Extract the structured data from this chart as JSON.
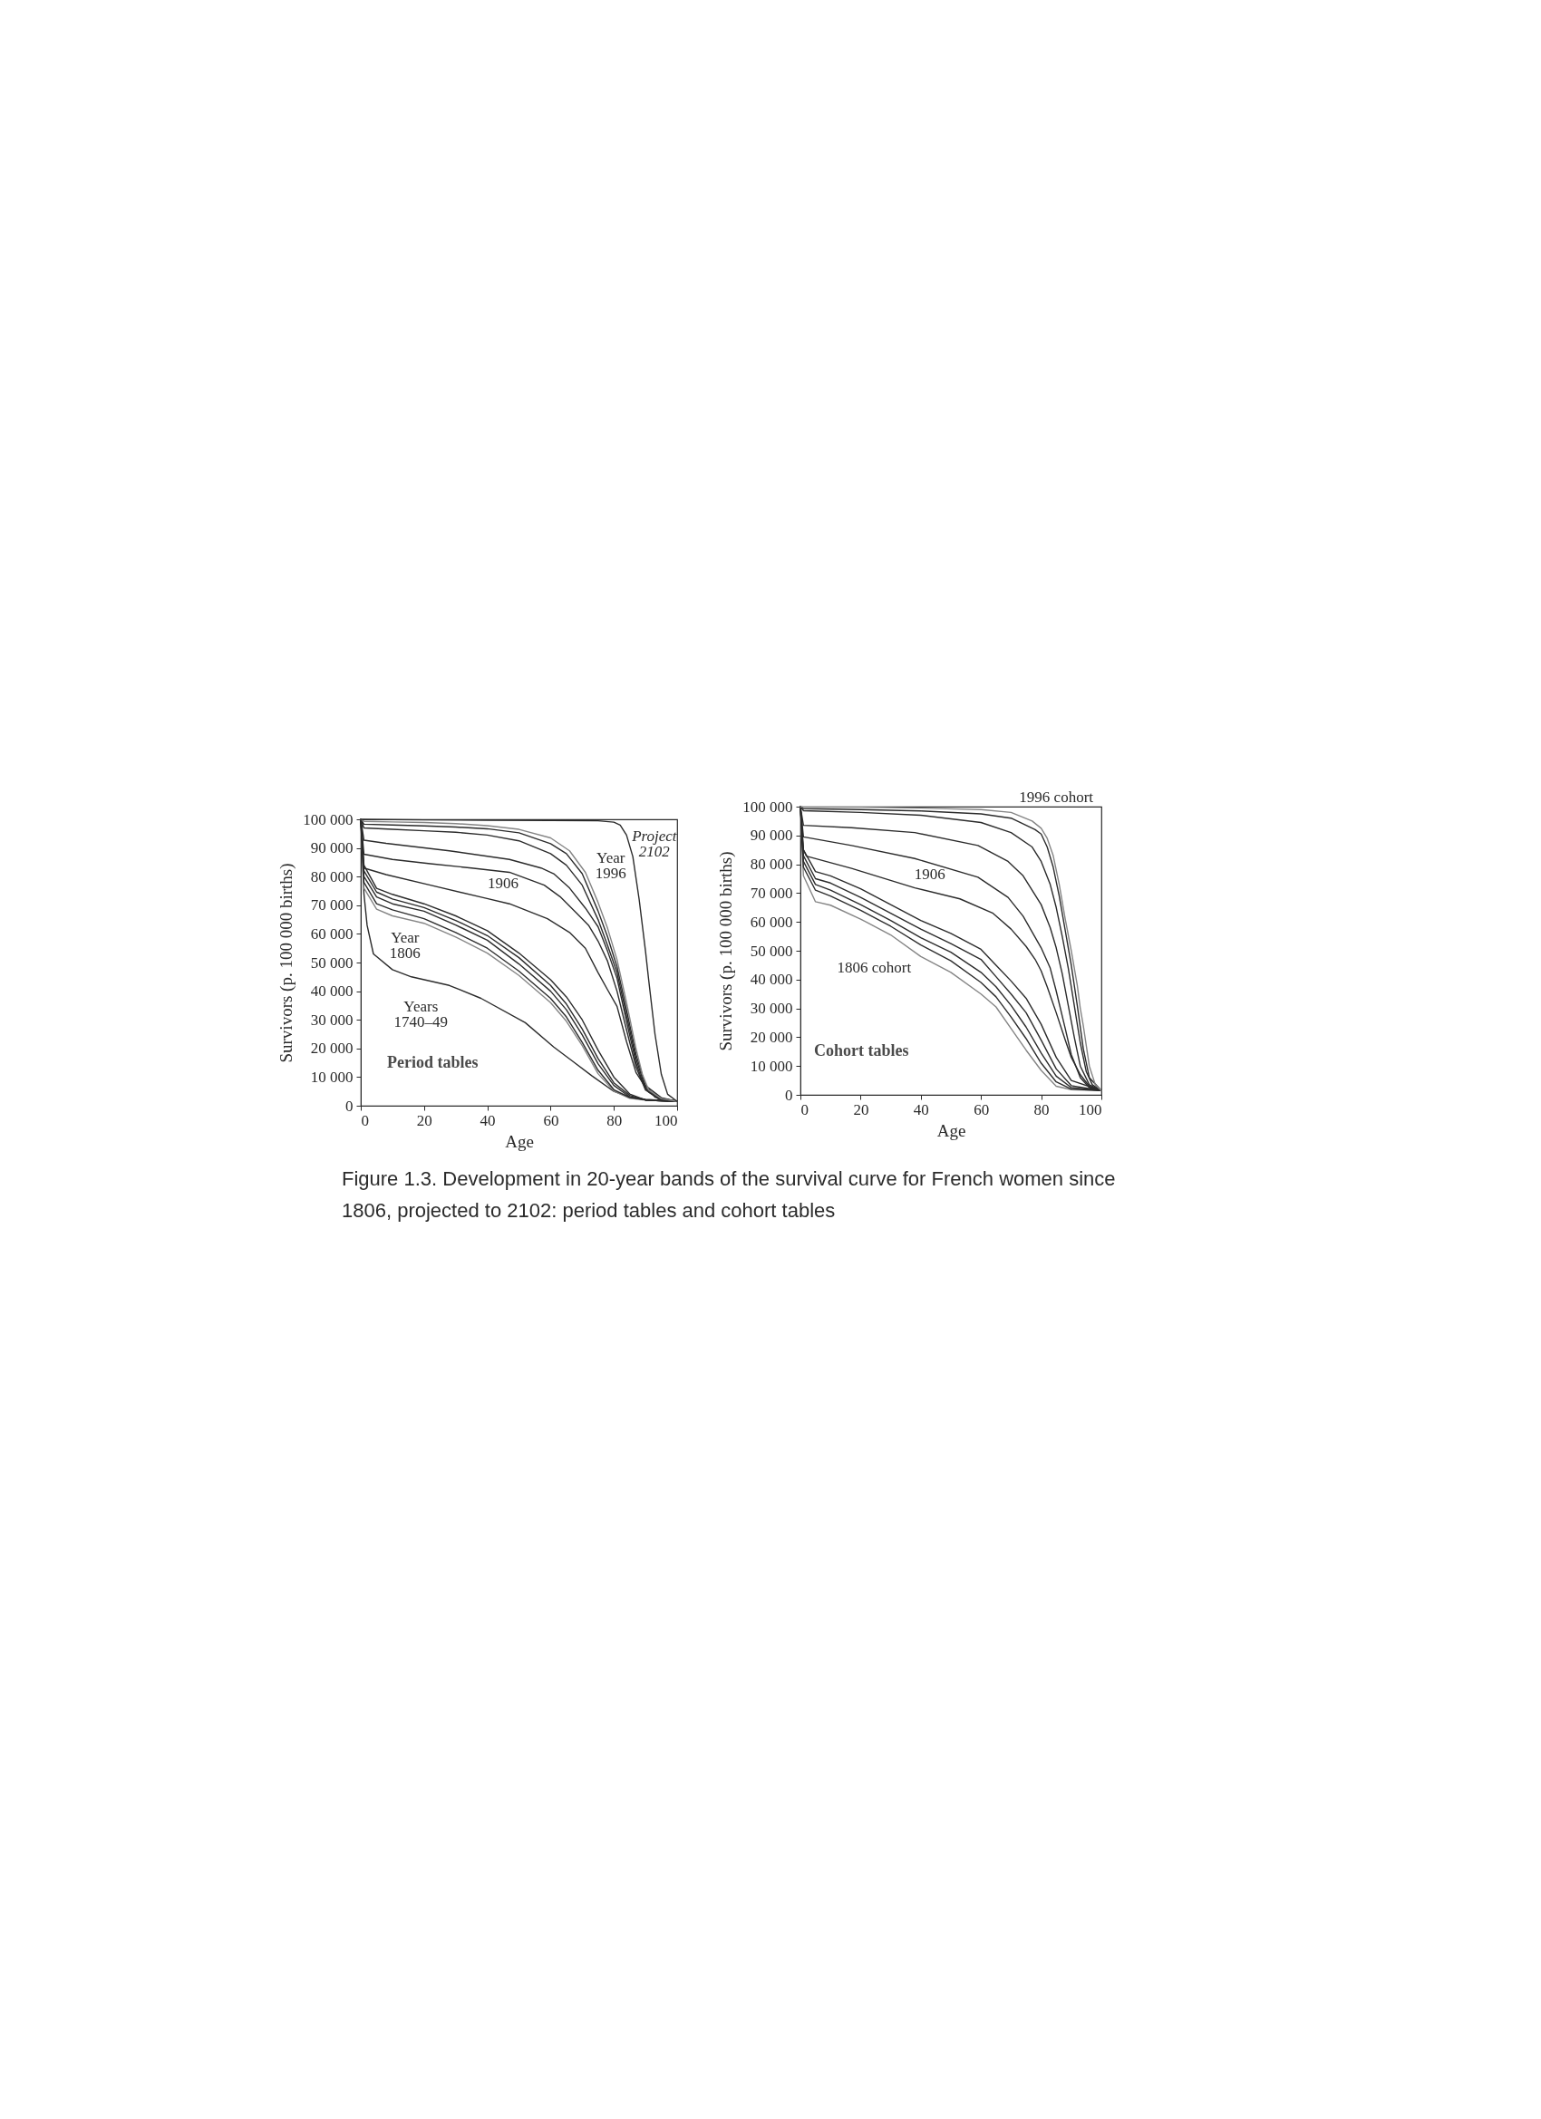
{
  "chart_data": [
    {
      "type": "line",
      "title": "Period tables",
      "xlabel": "Age",
      "ylabel": "Survivors (p. 100 000 births)",
      "xlim": [
        0,
        100
      ],
      "xticks": [
        0,
        20,
        40,
        60,
        80,
        100
      ],
      "ylim": [
        0,
        100000
      ],
      "yticks": [
        0,
        {
          "value": 10000,
          "label": "10 000"
        },
        {
          "value": 20000,
          "label": "20 000"
        },
        {
          "value": 30000,
          "label": "30 000"
        },
        {
          "value": 40000,
          "label": "40 000"
        },
        {
          "value": 50000,
          "label": "50 000"
        },
        {
          "value": 60000,
          "label": "60 000"
        },
        {
          "value": 70000,
          "label": "70 000"
        },
        {
          "value": 80000,
          "label": "80 000"
        },
        {
          "value": 90000,
          "label": "90 000"
        },
        {
          "value": 100000,
          "label": "100 000"
        }
      ],
      "series": [
        {
          "name": "Years 1740–49",
          "color": "#2b2b2b",
          "x": [
            0,
            1,
            2,
            4,
            10,
            16,
            28,
            38,
            52,
            61,
            67,
            73,
            80,
            85,
            90,
            100
          ],
          "values": [
            100000,
            74000,
            63000,
            53000,
            47500,
            45000,
            42000,
            37500,
            29000,
            20500,
            15500,
            10500,
            5000,
            3000,
            2200,
            1500
          ]
        },
        {
          "name": "Year 1806",
          "color": "#858585",
          "x": [
            0,
            1,
            5,
            10,
            20,
            30,
            40,
            50,
            60,
            65,
            70,
            75,
            80,
            85,
            90,
            100
          ],
          "values": [
            100000,
            76000,
            68600,
            66300,
            63700,
            58900,
            53300,
            45500,
            36000,
            29500,
            21000,
            11200,
            5100,
            2600,
            2000,
            1500
          ]
        },
        {
          "color": "#2b2b2b",
          "x": [
            0,
            1,
            5,
            10,
            20,
            30,
            40,
            50,
            60,
            65,
            70,
            75,
            80,
            85,
            90,
            100
          ],
          "values": [
            100000,
            78000,
            70500,
            68400,
            65300,
            60500,
            55000,
            47000,
            37500,
            31000,
            22100,
            12400,
            5600,
            2900,
            2000,
            1500
          ]
        },
        {
          "color": "#2b2b2b",
          "x": [
            0,
            1,
            5,
            10,
            20,
            30,
            40,
            50,
            60,
            65,
            70,
            75,
            80,
            85,
            90,
            100
          ],
          "values": [
            100000,
            80000,
            72900,
            70500,
            67900,
            63100,
            57800,
            49500,
            40000,
            33500,
            24700,
            14700,
            7100,
            3100,
            2000,
            1500
          ]
        },
        {
          "color": "#2b2b2b",
          "x": [
            0,
            1,
            5,
            10,
            20,
            30,
            40,
            50,
            60,
            65,
            70,
            75,
            80,
            85,
            90,
            100
          ],
          "values": [
            100000,
            82000,
            74600,
            72200,
            69200,
            64700,
            59400,
            51700,
            42000,
            35500,
            26800,
            16500,
            8000,
            3600,
            2000,
            1500
          ]
        },
        {
          "color": "#2b2b2b",
          "x": [
            0,
            1,
            5,
            10,
            20,
            30,
            40,
            50,
            60,
            65,
            70,
            75,
            80,
            85,
            90,
            100
          ],
          "values": [
            100000,
            84000,
            75900,
            73800,
            70500,
            66300,
            61100,
            53300,
            44000,
            38000,
            30000,
            19400,
            10000,
            4100,
            2000,
            1500
          ]
        },
        {
          "name": "1906",
          "color": "#2b2b2b",
          "x": [
            0,
            1,
            8,
            22,
            39,
            47,
            59,
            66,
            71,
            75,
            78,
            81,
            84,
            87,
            91,
            94,
            100
          ],
          "values": [
            100000,
            83000,
            80700,
            77000,
            72600,
            70500,
            65300,
            60500,
            55000,
            46500,
            40500,
            34700,
            22400,
            11600,
            4800,
            2500,
            1500
          ]
        },
        {
          "color": "#2b2b2b",
          "x": [
            0,
            1,
            10,
            22,
            35,
            47,
            58,
            63,
            68,
            72,
            75,
            78,
            81,
            84,
            87,
            90,
            95,
            100
          ],
          "values": [
            100000,
            87800,
            86000,
            84500,
            83000,
            81500,
            77000,
            73000,
            67500,
            63000,
            57500,
            50500,
            40000,
            26500,
            13500,
            5500,
            2000,
            1500
          ]
        },
        {
          "color": "#2b2b2b",
          "x": [
            0,
            1,
            8,
            28,
            47,
            57,
            61,
            66,
            71,
            75,
            78,
            81,
            84,
            87,
            89,
            93,
            100
          ],
          "values": [
            100000,
            92700,
            91600,
            89000,
            86000,
            83000,
            81000,
            76000,
            69000,
            62500,
            54000,
            44500,
            29500,
            15000,
            8500,
            3000,
            1500
          ]
        },
        {
          "color": "#2b2b2b",
          "x": [
            0,
            1,
            10,
            20,
            30,
            40,
            50,
            60,
            65,
            70,
            75,
            78,
            81,
            84,
            87,
            90,
            95,
            100
          ],
          "values": [
            100000,
            97000,
            96500,
            96000,
            95500,
            94500,
            92500,
            88000,
            84000,
            77000,
            65000,
            56000,
            46500,
            31500,
            16500,
            6000,
            2500,
            1500
          ]
        },
        {
          "color": "#2b2b2b",
          "x": [
            0,
            1,
            10,
            20,
            30,
            40,
            50,
            60,
            65,
            70,
            75,
            78,
            81,
            84,
            87,
            90,
            95,
            100
          ],
          "values": [
            100000,
            98300,
            98000,
            97700,
            97300,
            96700,
            95300,
            91500,
            88000,
            81000,
            68000,
            59000,
            48500,
            33500,
            18000,
            7000,
            2800,
            1500
          ]
        },
        {
          "name": "Year 1996",
          "color": "#858585",
          "x": [
            0,
            1,
            10,
            20,
            30,
            40,
            50,
            60,
            66,
            71,
            75,
            78,
            81,
            84,
            87,
            89,
            91,
            95,
            100
          ],
          "values": [
            100000,
            99300,
            99100,
            98900,
            98500,
            97800,
            96500,
            93500,
            89000,
            81500,
            71000,
            62000,
            51000,
            36000,
            20000,
            11000,
            5500,
            2500,
            1500
          ]
        },
        {
          "name": "Project 2102",
          "color": "#2b2b2b",
          "x": [
            0,
            20,
            40,
            60,
            75,
            80,
            82,
            84,
            86,
            88,
            90,
            91,
            93,
            95,
            97,
            100
          ],
          "values": [
            100000,
            99800,
            99700,
            99600,
            99500,
            99000,
            98000,
            94500,
            87000,
            72000,
            54000,
            44000,
            25000,
            11000,
            4000,
            1500
          ]
        }
      ],
      "annotations": [
        "Figure 1.3. Development in 20-year bands of the survival curve for French women since 1806, projected to 2102: period tables and cohort tables"
      ]
    },
    {
      "type": "line",
      "title": "Cohort tables",
      "xlabel": "Age",
      "ylabel": "Survivors (p. 100 000 births)",
      "xlim": [
        0,
        100
      ],
      "xticks": [
        0,
        20,
        40,
        60,
        80,
        100
      ],
      "ylim": [
        0,
        100000
      ],
      "yticks": [
        0,
        {
          "value": 10000,
          "label": "10 000"
        },
        {
          "value": 20000,
          "label": "20 000"
        },
        {
          "value": 30000,
          "label": "30 000"
        },
        {
          "value": 40000,
          "label": "40 000"
        },
        {
          "value": 50000,
          "label": "50 000"
        },
        {
          "value": 60000,
          "label": "60 000"
        },
        {
          "value": 70000,
          "label": "70 000"
        },
        {
          "value": 80000,
          "label": "80 000"
        },
        {
          "value": 90000,
          "label": "90 000"
        },
        {
          "value": 100000,
          "label": "100 000"
        }
      ],
      "series": [
        {
          "name": "1806 cohort",
          "color": "#858585",
          "x": [
            0,
            1,
            5,
            10,
            20,
            30,
            40,
            50,
            60,
            65,
            70,
            75,
            80,
            85,
            90,
            100
          ],
          "values": [
            100000,
            76000,
            67000,
            65800,
            61000,
            55500,
            48000,
            42500,
            35000,
            30500,
            23000,
            15500,
            8500,
            3000,
            1800,
            1500
          ]
        },
        {
          "color": "#2b2b2b",
          "x": [
            0,
            1,
            5,
            10,
            20,
            30,
            40,
            50,
            60,
            65,
            70,
            75,
            80,
            85,
            90,
            100
          ],
          "values": [
            100000,
            79000,
            71000,
            69000,
            64000,
            58500,
            52000,
            46500,
            39000,
            34000,
            27000,
            19500,
            11000,
            4500,
            2000,
            1500
          ]
        },
        {
          "color": "#2b2b2b",
          "x": [
            0,
            1,
            5,
            10,
            20,
            30,
            40,
            50,
            60,
            65,
            70,
            75,
            80,
            85,
            90,
            100
          ],
          "values": [
            100000,
            81000,
            73000,
            71000,
            66000,
            60500,
            54500,
            49500,
            42500,
            37500,
            31000,
            23500,
            14500,
            6500,
            2500,
            1500
          ]
        },
        {
          "color": "#2b2b2b",
          "x": [
            0,
            1,
            5,
            10,
            20,
            30,
            40,
            50,
            60,
            65,
            70,
            75,
            80,
            85,
            90,
            100
          ],
          "values": [
            100000,
            83000,
            75000,
            73500,
            68500,
            63000,
            57500,
            52500,
            47000,
            41000,
            35000,
            28500,
            19000,
            9000,
            3200,
            1500
          ]
        },
        {
          "color": "#2b2b2b",
          "x": [
            0,
            1,
            5,
            10,
            20,
            30,
            40,
            50,
            60,
            65,
            70,
            75,
            80,
            85,
            90,
            100
          ],
          "values": [
            100000,
            85000,
            77500,
            76000,
            71500,
            66000,
            60500,
            56000,
            50500,
            45000,
            39500,
            33500,
            24500,
            13000,
            5000,
            1500
          ]
        },
        {
          "name": "1906",
          "color": "#2b2b2b",
          "x": [
            0,
            1,
            2,
            17,
            38,
            53,
            64,
            70,
            75,
            78,
            80,
            82,
            85,
            88,
            90,
            93,
            96,
            100
          ],
          "values": [
            100000,
            85000,
            82800,
            78600,
            71800,
            68000,
            63000,
            57500,
            51500,
            47000,
            43000,
            37500,
            28500,
            19000,
            13000,
            7000,
            3000,
            1500
          ]
        },
        {
          "color": "#2b2b2b",
          "x": [
            0,
            1,
            17,
            38,
            59,
            69,
            74,
            80,
            83,
            85,
            88,
            90,
            93,
            96,
            100
          ],
          "values": [
            100000,
            89500,
            86500,
            82000,
            75500,
            68500,
            62000,
            51000,
            44000,
            36000,
            23000,
            14000,
            6000,
            2500,
            1500
          ]
        },
        {
          "color": "#2b2b2b",
          "x": [
            0,
            1,
            17,
            38,
            59,
            69,
            74,
            80,
            83,
            85,
            87,
            89,
            91,
            93,
            96,
            100
          ],
          "values": [
            100000,
            93500,
            92700,
            91000,
            86500,
            81000,
            76000,
            66000,
            58000,
            51000,
            42000,
            31000,
            20000,
            10000,
            3500,
            1500
          ]
        },
        {
          "color": "#2b2b2b",
          "x": [
            0,
            1,
            20,
            40,
            60,
            70,
            77,
            80,
            83,
            85,
            87,
            89,
            91,
            93,
            95,
            97,
            100
          ],
          "values": [
            100000,
            98600,
            98000,
            97000,
            94500,
            91000,
            86000,
            81000,
            73000,
            65000,
            55000,
            44000,
            31000,
            18000,
            8000,
            3500,
            1500
          ]
        },
        {
          "color": "#2b2b2b",
          "x": [
            0,
            1,
            20,
            40,
            60,
            70,
            78,
            80,
            82,
            84,
            86,
            88,
            90,
            92,
            94,
            96,
            100
          ],
          "values": [
            100000,
            99300,
            99000,
            98500,
            97500,
            96000,
            92000,
            90500,
            86000,
            79000,
            69000,
            57000,
            45000,
            31000,
            16000,
            6000,
            1500
          ]
        },
        {
          "name": "1996 cohort",
          "color": "#858585",
          "x": [
            0,
            1,
            20,
            40,
            60,
            70,
            77,
            80,
            82,
            84,
            86,
            88,
            90,
            92,
            93,
            94,
            95,
            96,
            98,
            100
          ],
          "values": [
            100000,
            99800,
            99800,
            99500,
            99000,
            98000,
            95000,
            92500,
            89000,
            83000,
            73000,
            61000,
            50000,
            38000,
            30000,
            24000,
            17000,
            10000,
            3500,
            1500
          ]
        }
      ]
    }
  ]
}
